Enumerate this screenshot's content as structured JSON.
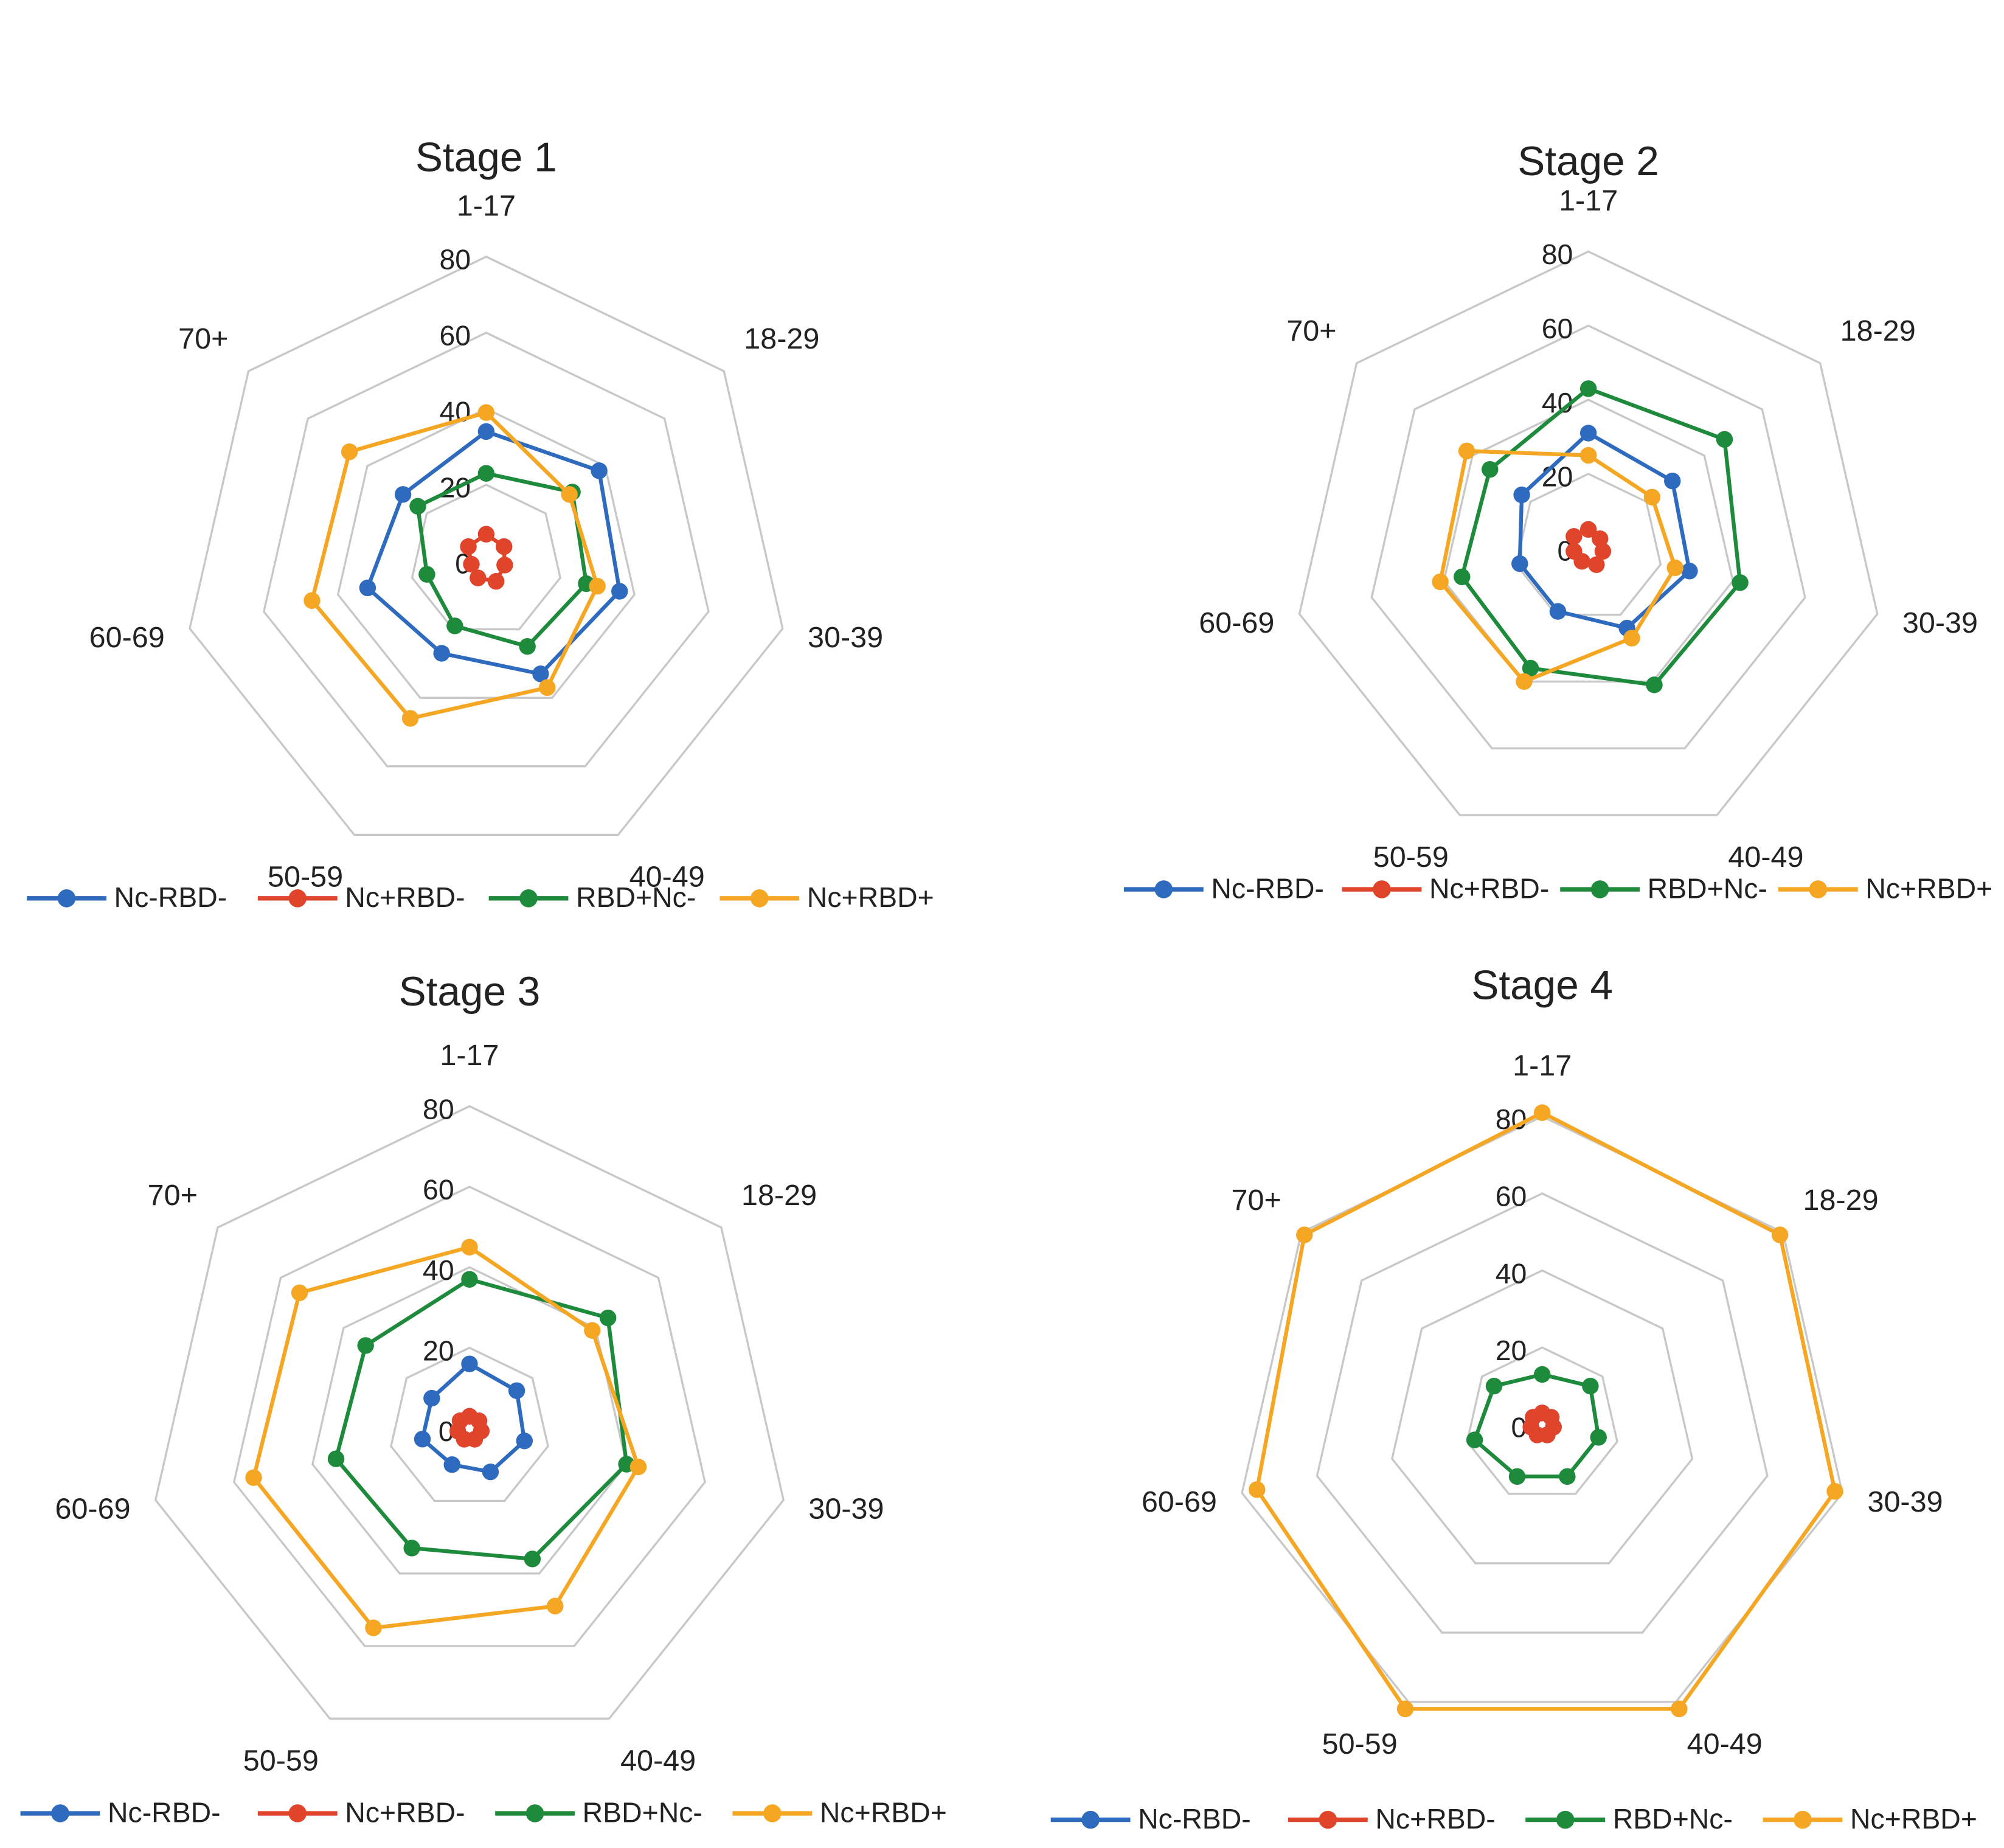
{
  "chart_data": [
    {
      "type": "radar",
      "title": "Stage 1",
      "categories": [
        "1-17",
        "18-29",
        "30-39",
        "40-49",
        "50-59",
        "60-69",
        "70+"
      ],
      "rlim": [
        0,
        80
      ],
      "rticks": [
        0,
        20,
        40,
        60,
        80
      ],
      "series": [
        {
          "name": "Nc-RBD-",
          "color": "#2e6bbf",
          "values": [
            34,
            38,
            36,
            33,
            27,
            32,
            28
          ]
        },
        {
          "name": "Nc+RBD-",
          "color": "#e0442a",
          "values": [
            7,
            6,
            5,
            6,
            5,
            4,
            6
          ]
        },
        {
          "name": "RBD+Nc-",
          "color": "#1e8a3c",
          "values": [
            23,
            29,
            27,
            25,
            19,
            16,
            23
          ]
        },
        {
          "name": "Nc+RBD+",
          "color": "#f5a623",
          "values": [
            39,
            28,
            30,
            37,
            46,
            47,
            46
          ]
        }
      ]
    },
    {
      "type": "radar",
      "title": "Stage 2",
      "categories": [
        "1-17",
        "18-29",
        "30-39",
        "40-49",
        "50-59",
        "60-69",
        "70+"
      ],
      "rlim": [
        0,
        80
      ],
      "rticks": [
        0,
        20,
        40,
        60,
        80
      ],
      "series": [
        {
          "name": "Nc-RBD-",
          "color": "#2e6bbf",
          "values": [
            31,
            29,
            28,
            24,
            19,
            19,
            23
          ]
        },
        {
          "name": "Nc+RBD-",
          "color": "#e0442a",
          "values": [
            5,
            4,
            4,
            5,
            4,
            4,
            5
          ]
        },
        {
          "name": "RBD+Nc-",
          "color": "#1e8a3c",
          "values": [
            43,
            47,
            42,
            41,
            36,
            35,
            34
          ]
        },
        {
          "name": "Nc+RBD+",
          "color": "#f5a623",
          "values": [
            25,
            22,
            24,
            27,
            40,
            41,
            42
          ]
        }
      ]
    },
    {
      "type": "radar",
      "title": "Stage 3",
      "categories": [
        "1-17",
        "18-29",
        "30-39",
        "40-49",
        "50-59",
        "60-69",
        "70+"
      ],
      "rlim": [
        0,
        80
      ],
      "rticks": [
        0,
        20,
        40,
        60,
        80
      ],
      "series": [
        {
          "name": "Nc-RBD-",
          "color": "#2e6bbf",
          "values": [
            16,
            15,
            14,
            12,
            10,
            12,
            12
          ]
        },
        {
          "name": "Nc+RBD-",
          "color": "#e0442a",
          "values": [
            3,
            3,
            3,
            3,
            3,
            3,
            3
          ]
        },
        {
          "name": "RBD+Nc-",
          "color": "#1e8a3c",
          "values": [
            37,
            44,
            40,
            36,
            33,
            34,
            33
          ]
        },
        {
          "name": "Nc+RBD+",
          "color": "#f5a623",
          "values": [
            45,
            39,
            43,
            49,
            55,
            55,
            54
          ]
        }
      ]
    },
    {
      "type": "radar",
      "title": "Stage 4",
      "categories": [
        "1-17",
        "18-29",
        "30-39",
        "40-49",
        "50-59",
        "60-69",
        "70+"
      ],
      "rlim": [
        0,
        80
      ],
      "rticks": [
        0,
        20,
        40,
        60,
        80
      ],
      "series": [
        {
          "name": "Nc-RBD-",
          "color": "#2e6bbf",
          "values": [
            3,
            3,
            3,
            3,
            3,
            3,
            3
          ]
        },
        {
          "name": "Nc+RBD-",
          "color": "#e0442a",
          "values": [
            3,
            3,
            3,
            3,
            3,
            3,
            3
          ]
        },
        {
          "name": "RBD+Nc-",
          "color": "#1e8a3c",
          "values": [
            13,
            16,
            15,
            15,
            15,
            18,
            16
          ]
        },
        {
          "name": "Nc+RBD+",
          "color": "#f5a623",
          "values": [
            81,
            79,
            78,
            82,
            82,
            76,
            79
          ]
        }
      ]
    }
  ]
}
